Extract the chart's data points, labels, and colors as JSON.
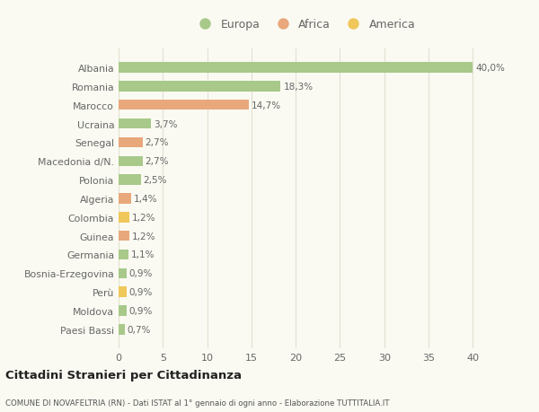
{
  "categories": [
    "Albania",
    "Romania",
    "Marocco",
    "Ucraina",
    "Senegal",
    "Macedonia d/N.",
    "Polonia",
    "Algeria",
    "Colombia",
    "Guinea",
    "Germania",
    "Bosnia-Erzegovina",
    "Perù",
    "Moldova",
    "Paesi Bassi"
  ],
  "values": [
    40.0,
    18.3,
    14.7,
    3.7,
    2.7,
    2.7,
    2.5,
    1.4,
    1.2,
    1.2,
    1.1,
    0.9,
    0.9,
    0.9,
    0.7
  ],
  "labels": [
    "40,0%",
    "18,3%",
    "14,7%",
    "3,7%",
    "2,7%",
    "2,7%",
    "2,5%",
    "1,4%",
    "1,2%",
    "1,2%",
    "1,1%",
    "0,9%",
    "0,9%",
    "0,9%",
    "0,7%"
  ],
  "colors": [
    "#a8c98a",
    "#a8c98a",
    "#e8a87c",
    "#a8c98a",
    "#e8a87c",
    "#a8c98a",
    "#a8c98a",
    "#e8a87c",
    "#f0c75a",
    "#e8a87c",
    "#a8c98a",
    "#a8c98a",
    "#f0c75a",
    "#a8c98a",
    "#a8c98a"
  ],
  "legend_labels": [
    "Europa",
    "Africa",
    "America"
  ],
  "legend_colors": [
    "#a8c98a",
    "#e8a87c",
    "#f0c75a"
  ],
  "title": "Cittadini Stranieri per Cittadinanza",
  "subtitle": "COMUNE DI NOVAFELTRIA (RN) - Dati ISTAT al 1° gennaio di ogni anno - Elaborazione TUTTITALIA.IT",
  "xlim": [
    0,
    42
  ],
  "xticks": [
    0,
    5,
    10,
    15,
    20,
    25,
    30,
    35,
    40
  ],
  "background_color": "#fafaf2",
  "grid_color": "#e0e0d0"
}
